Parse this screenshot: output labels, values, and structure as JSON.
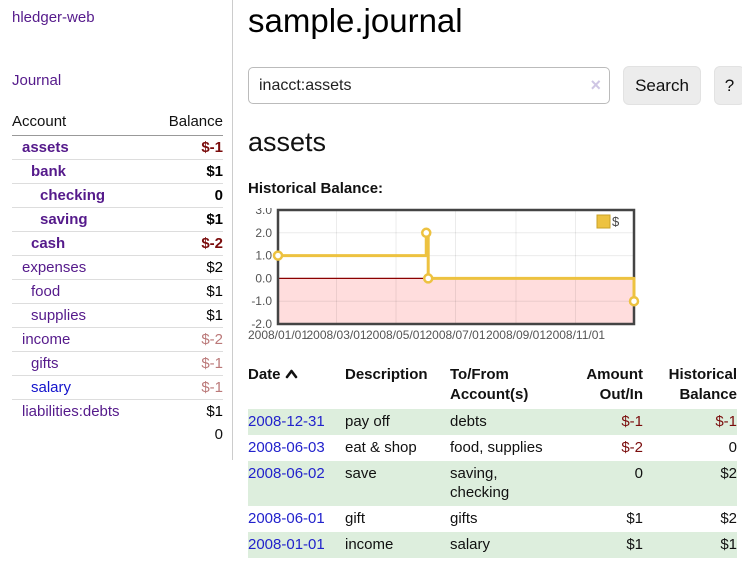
{
  "sidebar": {
    "brand": "hledger-web",
    "nav_journal": "Journal",
    "columns": {
      "account": "Account",
      "balance": "Balance"
    },
    "accounts": [
      {
        "name": "assets",
        "depth": 1,
        "balance": "$-1",
        "strong": true
      },
      {
        "name": "bank",
        "depth": 2,
        "balance": "$1",
        "strong": true
      },
      {
        "name": "checking",
        "depth": 3,
        "balance": "0",
        "strong": true
      },
      {
        "name": "saving",
        "depth": 3,
        "balance": "$1",
        "strong": true
      },
      {
        "name": "cash",
        "depth": 2,
        "balance": "$-2",
        "strong": true
      },
      {
        "name": "expenses",
        "depth": 1,
        "balance": "$2"
      },
      {
        "name": "food",
        "depth": 2,
        "balance": "$1"
      },
      {
        "name": "supplies",
        "depth": 2,
        "balance": "$1"
      },
      {
        "name": "income",
        "depth": 1,
        "balance": "$-2"
      },
      {
        "name": "gifts",
        "depth": 2,
        "balance": "$-1"
      },
      {
        "name": "salary",
        "depth": 2,
        "balance": "$-1",
        "link_color": "blue"
      },
      {
        "name": "liabilities:debts",
        "depth": 1,
        "balance": "$1"
      }
    ],
    "total": "0"
  },
  "header": {
    "title": "sample.journal"
  },
  "search": {
    "value": "inacct:assets",
    "clear_glyph": "×",
    "button_label": "Search",
    "help_label": "?"
  },
  "account_page": {
    "title": "assets",
    "section_label": "Historical Balance:"
  },
  "chart_data": {
    "type": "line",
    "title": "Historical Balance",
    "step": true,
    "series": [
      {
        "name": "$",
        "color": "#edc240",
        "points": [
          {
            "date": "2008-01-01",
            "value": 1
          },
          {
            "date": "2008-06-01",
            "value": 2
          },
          {
            "date": "2008-06-03",
            "value": 0
          },
          {
            "date": "2008-12-31",
            "value": -1
          }
        ]
      }
    ],
    "x": {
      "min": "2008-01-01",
      "max": "2008-12-31",
      "ticks": [
        "2008/01/01",
        "2008/03/01",
        "2008/05/01",
        "2008/07/01",
        "2008/09/01",
        "2008/11/01"
      ]
    },
    "y": {
      "min": -2,
      "max": 3,
      "ticks": [
        3,
        2,
        1,
        0,
        -1,
        -2
      ],
      "tick_labels": [
        "3.0",
        "2.0",
        "1.0",
        "0.0",
        "-1.0",
        "-2.0"
      ]
    },
    "grid": true,
    "negative_region_fill": "#ffdddd",
    "zero_line_color": "#8b0000",
    "legend": {
      "position": "top-right",
      "label": "$"
    }
  },
  "register": {
    "columns": [
      "Date",
      "Description",
      "To/From Account(s)",
      "Amount Out/In",
      "Historical Balance"
    ],
    "rows": [
      {
        "date": "2008-12-31",
        "description": "pay off",
        "accounts": "debts",
        "amount": "$-1",
        "balance": "$-1"
      },
      {
        "date": "2008-06-03",
        "description": "eat & shop",
        "accounts": "food, supplies",
        "amount": "$-2",
        "balance": "0"
      },
      {
        "date": "2008-06-02",
        "description": "save",
        "accounts": "saving, checking",
        "amount": "0",
        "balance": "$2"
      },
      {
        "date": "2008-06-01",
        "description": "gift",
        "accounts": "gifts",
        "amount": "$1",
        "balance": "$2"
      },
      {
        "date": "2008-01-01",
        "description": "income",
        "accounts": "salary",
        "amount": "$1",
        "balance": "$1"
      }
    ]
  }
}
